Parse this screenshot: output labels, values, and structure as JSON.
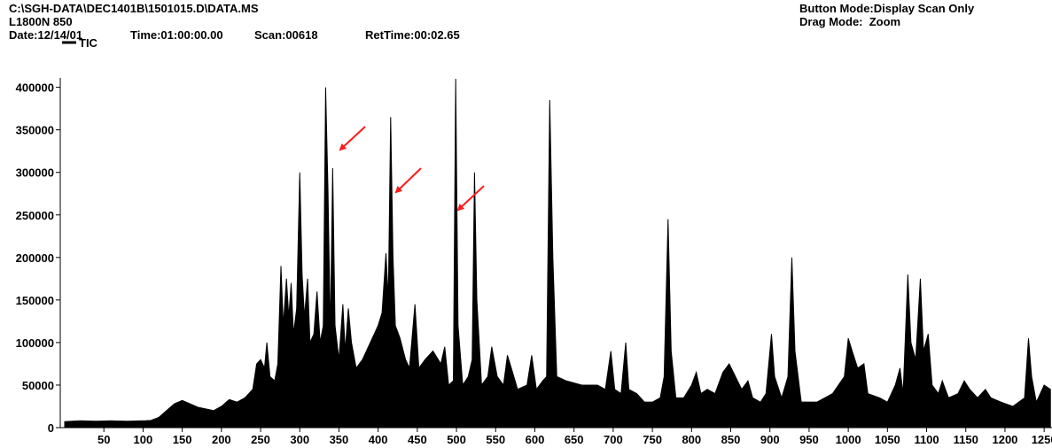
{
  "header": {
    "file": "C:\\SGH-DATA\\DEC1401B\\1501015.D\\DATA.MS",
    "sample": "L1800N 850",
    "date": "Date:12/14/01",
    "time": "Time:01:00:00.00",
    "scan": "Scan:00618",
    "ret_time": "RetTime:00:02.65",
    "button_mode": "Button Mode:Display Scan Only",
    "drag_mode": "Drag Mode:  Zoom"
  },
  "chart_data": {
    "type": "area",
    "xlim": [
      0,
      1260
    ],
    "ylim": [
      0,
      410000
    ],
    "xticks": [
      50,
      100,
      150,
      200,
      250,
      300,
      350,
      400,
      450,
      500,
      550,
      600,
      650,
      700,
      750,
      800,
      850,
      900,
      950,
      1000,
      1050,
      1100,
      1150,
      1200,
      1250
    ],
    "yticks": [
      0,
      50000,
      100000,
      150000,
      200000,
      250000,
      300000,
      350000,
      400000
    ],
    "series": [
      {
        "name": "TIC",
        "color": "#000000",
        "x": [
          0,
          20,
          40,
          60,
          80,
          100,
          110,
          120,
          130,
          140,
          150,
          160,
          170,
          180,
          190,
          200,
          210,
          220,
          230,
          240,
          245,
          250,
          255,
          258,
          262,
          268,
          272,
          276,
          279,
          283,
          286,
          289,
          292,
          296,
          300,
          303,
          306,
          310,
          313,
          318,
          322,
          326,
          330,
          333,
          336,
          339,
          342,
          345,
          350,
          355,
          358,
          362,
          366,
          372,
          380,
          390,
          400,
          405,
          410,
          413,
          416,
          419,
          422,
          428,
          435,
          440,
          447,
          452,
          460,
          470,
          480,
          485,
          490,
          496,
          499,
          502,
          508,
          515,
          520,
          523,
          526,
          532,
          540,
          545,
          552,
          560,
          565,
          570,
          578,
          590,
          596,
          602,
          610,
          615,
          619,
          623,
          628,
          640,
          660,
          680,
          690,
          697,
          702,
          710,
          716,
          720,
          730,
          740,
          750,
          760,
          765,
          770,
          774,
          780,
          790,
          800,
          806,
          812,
          820,
          830,
          840,
          848,
          856,
          864,
          872,
          878,
          888,
          895,
          902,
          906,
          915,
          923,
          928,
          932,
          940,
          960,
          980,
          995,
          1000,
          1005,
          1012,
          1020,
          1025,
          1040,
          1050,
          1060,
          1066,
          1070,
          1076,
          1080,
          1086,
          1092,
          1096,
          1102,
          1107,
          1115,
          1120,
          1128,
          1140,
          1148,
          1155,
          1165,
          1175,
          1182,
          1195,
          1210,
          1225,
          1230,
          1234,
          1240,
          1250,
          1258
        ],
        "values": [
          7000,
          8000,
          7500,
          8000,
          7500,
          8000,
          8500,
          12000,
          20000,
          28000,
          32000,
          28000,
          24000,
          22000,
          20000,
          25000,
          33000,
          30000,
          35000,
          45000,
          75000,
          80000,
          70000,
          100000,
          60000,
          55000,
          75000,
          190000,
          120000,
          175000,
          130000,
          170000,
          110000,
          140000,
          300000,
          180000,
          130000,
          175000,
          100000,
          110000,
          160000,
          100000,
          120000,
          400000,
          280000,
          110000,
          305000,
          120000,
          80000,
          145000,
          90000,
          140000,
          100000,
          70000,
          80000,
          100000,
          120000,
          135000,
          205000,
          150000,
          365000,
          200000,
          120000,
          105000,
          80000,
          70000,
          145000,
          70000,
          80000,
          90000,
          75000,
          95000,
          50000,
          55000,
          410000,
          120000,
          50000,
          60000,
          80000,
          300000,
          150000,
          50000,
          60000,
          95000,
          60000,
          50000,
          85000,
          70000,
          45000,
          50000,
          85000,
          45000,
          55000,
          60000,
          385000,
          200000,
          60000,
          55000,
          50000,
          50000,
          45000,
          90000,
          45000,
          40000,
          100000,
          45000,
          40000,
          30000,
          30000,
          35000,
          60000,
          245000,
          90000,
          35000,
          35000,
          50000,
          65000,
          40000,
          45000,
          40000,
          65000,
          75000,
          60000,
          45000,
          55000,
          35000,
          30000,
          40000,
          110000,
          60000,
          35000,
          60000,
          200000,
          90000,
          30000,
          30000,
          40000,
          60000,
          105000,
          90000,
          70000,
          75000,
          40000,
          35000,
          30000,
          50000,
          70000,
          40000,
          180000,
          100000,
          80000,
          175000,
          90000,
          110000,
          50000,
          40000,
          55000,
          35000,
          40000,
          55000,
          45000,
          35000,
          45000,
          35000,
          30000,
          25000,
          35000,
          105000,
          60000,
          30000,
          50000,
          45000
        ]
      }
    ],
    "legend": "top-left"
  }
}
